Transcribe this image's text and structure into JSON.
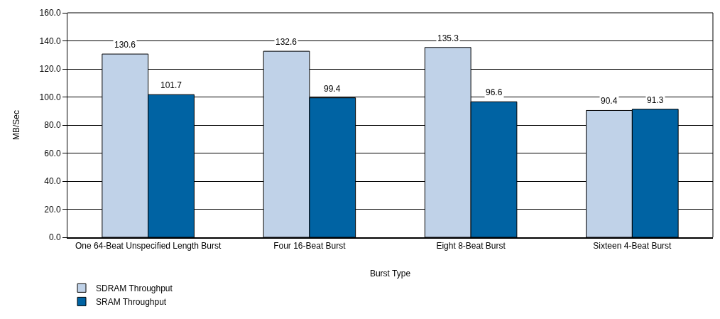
{
  "chart_data": {
    "type": "bar",
    "xlabel": "Burst Type",
    "ylabel": "MB/Sec",
    "categories": [
      "One 64-Beat Unspecified Length Burst",
      "Four 16-Beat Burst",
      "Eight 8-Beat Burst",
      "Sixteen 4-Beat Burst"
    ],
    "series": [
      {
        "name": "SDRAM Throughput",
        "color": "#c0d2e8",
        "values": [
          130.6,
          132.6,
          135.3,
          90.4
        ]
      },
      {
        "name": "SRAM Throughput",
        "color": "#0063a3",
        "values": [
          101.7,
          99.4,
          96.6,
          91.3
        ]
      }
    ],
    "ylim": [
      0,
      160
    ],
    "yticks": [
      {
        "value": 0,
        "label": "0.0"
      },
      {
        "value": 20,
        "label": "20.0"
      },
      {
        "value": 40,
        "label": "40.0"
      },
      {
        "value": 60,
        "label": "60.0"
      },
      {
        "value": 80,
        "label": "80.0"
      },
      {
        "value": 100,
        "label": "100.0"
      },
      {
        "value": 120,
        "label": "120.0"
      },
      {
        "value": 140,
        "label": "140.0"
      },
      {
        "value": 160,
        "label": "160.0"
      }
    ],
    "grid": "y",
    "legend": "bottom left",
    "data_labels": true
  }
}
